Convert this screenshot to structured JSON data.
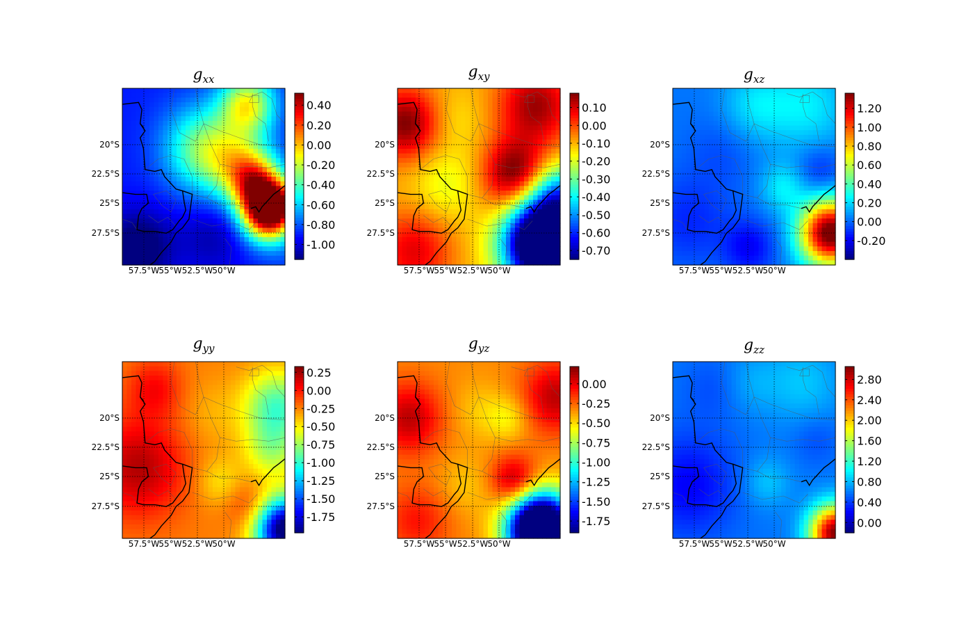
{
  "chart_data": [
    {
      "type": "heatmap",
      "title": "g",
      "title_sub": "xx",
      "colormap": "jet",
      "x_ticks": [
        "57.5°W",
        "55°W",
        "52.5°W",
        "50°W"
      ],
      "y_ticks": [
        "20°S",
        "22.5°S",
        "25°S",
        "27.5°S"
      ],
      "grid": true,
      "colorbar": {
        "min": -1.15,
        "max": 0.52,
        "ticks": [
          0.4,
          0.2,
          0.0,
          -0.2,
          -0.4,
          -0.6,
          -0.8,
          -1.0
        ],
        "labels": [
          "0.40",
          "0.20",
          "0.00",
          "-0.20",
          "-0.40",
          "-0.60",
          "-0.80",
          "-1.00"
        ]
      },
      "base": 0.15,
      "features": [
        {
          "x": 0.5,
          "y": 0.34,
          "v": 0.35,
          "s": 0.17
        },
        {
          "x": 0.72,
          "y": 0.43,
          "v": 0.3,
          "s": 0.14
        },
        {
          "x": 0.82,
          "y": 0.54,
          "v": 0.48,
          "s": 0.11
        },
        {
          "x": 0.9,
          "y": 0.7,
          "v": 0.95,
          "s": 0.11
        },
        {
          "x": 0.98,
          "y": 0.63,
          "v": 0.2,
          "s": 0.08
        },
        {
          "x": 0.99,
          "y": 1.0,
          "v": 0.02,
          "s": 0.1
        },
        {
          "x": 0.77,
          "y": 0.09,
          "v": 0.45,
          "s": 0.12
        },
        {
          "x": 0.1,
          "y": 0.9,
          "v": -0.2,
          "s": 0.15
        },
        {
          "x": 0.55,
          "y": 0.85,
          "v": -0.1,
          "s": 0.14
        }
      ]
    },
    {
      "type": "heatmap",
      "title": "g",
      "title_sub": "xy",
      "colormap": "jet",
      "x_ticks": [
        "57.5°W",
        "55°W",
        "52.5°W",
        "50°W"
      ],
      "y_ticks": [
        "20°S",
        "22.5°S",
        "25°S",
        "27.5°S"
      ],
      "grid": true,
      "colorbar": {
        "min": -0.75,
        "max": 0.18,
        "ticks": [
          0.1,
          0.0,
          -0.1,
          -0.2,
          -0.3,
          -0.4,
          -0.5,
          -0.6,
          -0.7
        ],
        "labels": [
          "0.10",
          "0.00",
          "-0.10",
          "-0.20",
          "-0.30",
          "-0.40",
          "-0.50",
          "-0.60",
          "-0.70"
        ]
      },
      "base": 0.7,
      "features": [
        {
          "x": 0.05,
          "y": 0.2,
          "v": 0.3,
          "s": 0.14
        },
        {
          "x": 0.85,
          "y": 0.1,
          "v": 0.27,
          "s": 0.16
        },
        {
          "x": 0.72,
          "y": 0.47,
          "v": 0.3,
          "s": 0.13
        },
        {
          "x": 0.1,
          "y": 0.92,
          "v": 0.2,
          "s": 0.16
        },
        {
          "x": 0.36,
          "y": 0.18,
          "v": -0.05,
          "s": 0.12
        },
        {
          "x": 0.3,
          "y": 0.55,
          "v": -0.1,
          "s": 0.15
        },
        {
          "x": 0.9,
          "y": 0.88,
          "v": -1.1,
          "s": 0.17
        },
        {
          "x": 1.0,
          "y": 0.6,
          "v": -0.35,
          "s": 0.12
        },
        {
          "x": 0.62,
          "y": 0.62,
          "v": 0.05,
          "s": 0.12
        }
      ]
    },
    {
      "type": "heatmap",
      "title": "g",
      "title_sub": "xz",
      "colormap": "jet",
      "x_ticks": [
        "57.5°W",
        "55°W",
        "52.5°W",
        "50°W"
      ],
      "y_ticks": [
        "20°S",
        "22.5°S",
        "25°S",
        "27.5°S"
      ],
      "grid": true,
      "colorbar": {
        "min": -0.4,
        "max": 1.36,
        "ticks": [
          1.2,
          1.0,
          0.8,
          0.6,
          0.4,
          0.2,
          0.0,
          -0.2
        ],
        "labels": [
          "1.20",
          "1.00",
          "0.80",
          "0.60",
          "0.40",
          "0.20",
          "0.00",
          "-0.20"
        ]
      },
      "base": 0.24,
      "features": [
        {
          "x": 0.5,
          "y": 0.1,
          "v": 0.1,
          "s": 0.14
        },
        {
          "x": 0.82,
          "y": 0.1,
          "v": 0.12,
          "s": 0.18
        },
        {
          "x": 0.68,
          "y": 0.56,
          "v": 0.12,
          "s": 0.1
        },
        {
          "x": 0.97,
          "y": 0.82,
          "v": 0.8,
          "s": 0.13
        },
        {
          "x": 0.47,
          "y": 0.9,
          "v": -0.12,
          "s": 0.11
        },
        {
          "x": 0.1,
          "y": 0.75,
          "v": -0.08,
          "s": 0.18
        },
        {
          "x": 0.9,
          "y": 0.47,
          "v": -0.08,
          "s": 0.1
        },
        {
          "x": 0.3,
          "y": 0.35,
          "v": -0.04,
          "s": 0.15
        }
      ]
    },
    {
      "type": "heatmap",
      "title": "g",
      "title_sub": "yy",
      "colormap": "jet",
      "x_ticks": [
        "57.5°W",
        "55°W",
        "52.5°W",
        "50°W"
      ],
      "y_ticks": [
        "20°S",
        "22.5°S",
        "25°S",
        "27.5°S"
      ],
      "grid": true,
      "colorbar": {
        "min": -1.97,
        "max": 0.33,
        "ticks": [
          0.25,
          0.0,
          -0.25,
          -0.5,
          -0.75,
          -1.0,
          -1.25,
          -1.5,
          -1.75
        ],
        "labels": [
          "0.25",
          "0.00",
          "-0.25",
          "-0.50",
          "-0.75",
          "-1.00",
          "-1.25",
          "-1.50",
          "-1.75"
        ]
      },
      "base": 0.75,
      "features": [
        {
          "x": 0.1,
          "y": 0.6,
          "v": 0.2,
          "s": 0.2
        },
        {
          "x": 0.2,
          "y": 0.15,
          "v": 0.12,
          "s": 0.12
        },
        {
          "x": 0.95,
          "y": 0.25,
          "v": -0.3,
          "s": 0.14
        },
        {
          "x": 0.92,
          "y": 0.5,
          "v": -0.18,
          "s": 0.12
        },
        {
          "x": 1.0,
          "y": 0.95,
          "v": -0.8,
          "s": 0.13
        },
        {
          "x": 0.78,
          "y": 0.82,
          "v": 0.1,
          "s": 0.1
        },
        {
          "x": 0.6,
          "y": 0.68,
          "v": -0.1,
          "s": 0.1
        },
        {
          "x": 0.55,
          "y": 0.3,
          "v": -0.05,
          "s": 0.14
        }
      ]
    },
    {
      "type": "heatmap",
      "title": "g",
      "title_sub": "yz",
      "colormap": "jet",
      "x_ticks": [
        "57.5°W",
        "55°W",
        "52.5°W",
        "50°W"
      ],
      "y_ticks": [
        "20°S",
        "22.5°S",
        "25°S",
        "27.5°S"
      ],
      "grid": true,
      "colorbar": {
        "min": -1.9,
        "max": 0.22,
        "ticks": [
          0.0,
          -0.25,
          -0.5,
          -0.75,
          -1.0,
          -1.25,
          -1.5,
          -1.75
        ],
        "labels": [
          "0.00",
          "-0.25",
          "-0.50",
          "-0.75",
          "-1.00",
          "-1.25",
          "-1.50",
          "-1.75"
        ]
      },
      "base": 0.74,
      "features": [
        {
          "x": 0.07,
          "y": 0.32,
          "v": 0.2,
          "s": 0.14
        },
        {
          "x": 0.97,
          "y": 0.2,
          "v": 0.2,
          "s": 0.14
        },
        {
          "x": 0.72,
          "y": 0.68,
          "v": 0.23,
          "s": 0.1
        },
        {
          "x": 0.12,
          "y": 0.9,
          "v": 0.12,
          "s": 0.14
        },
        {
          "x": 0.88,
          "y": 0.95,
          "v": -1.2,
          "s": 0.14
        },
        {
          "x": 0.5,
          "y": 0.28,
          "v": -0.06,
          "s": 0.12
        },
        {
          "x": 0.42,
          "y": 0.7,
          "v": -0.06,
          "s": 0.12
        },
        {
          "x": 0.68,
          "y": 0.32,
          "v": -0.1,
          "s": 0.09
        }
      ]
    },
    {
      "type": "heatmap",
      "title": "g",
      "title_sub": "zz",
      "colormap": "jet",
      "x_ticks": [
        "57.5°W",
        "55°W",
        "52.5°W",
        "50°W"
      ],
      "y_ticks": [
        "20°S",
        "22.5°S",
        "25°S",
        "27.5°S"
      ],
      "grid": true,
      "colorbar": {
        "min": -0.2,
        "max": 3.05,
        "ticks": [
          2.8,
          2.4,
          2.0,
          1.6,
          1.2,
          0.8,
          0.4,
          0.0
        ],
        "labels": [
          "2.80",
          "2.40",
          "2.00",
          "1.60",
          "1.20",
          "0.80",
          "0.40",
          "0.00"
        ]
      },
      "base": 0.24,
      "features": [
        {
          "x": 0.1,
          "y": 0.7,
          "v": -0.12,
          "s": 0.2
        },
        {
          "x": 0.25,
          "y": 0.15,
          "v": -0.04,
          "s": 0.13
        },
        {
          "x": 0.48,
          "y": 0.12,
          "v": 0.05,
          "s": 0.12
        },
        {
          "x": 0.8,
          "y": 0.12,
          "v": 0.08,
          "s": 0.16
        },
        {
          "x": 0.58,
          "y": 0.68,
          "v": 0.08,
          "s": 0.1
        },
        {
          "x": 1.0,
          "y": 0.97,
          "v": 0.75,
          "s": 0.11
        },
        {
          "x": 0.88,
          "y": 0.44,
          "v": -0.04,
          "s": 0.1
        }
      ]
    }
  ]
}
